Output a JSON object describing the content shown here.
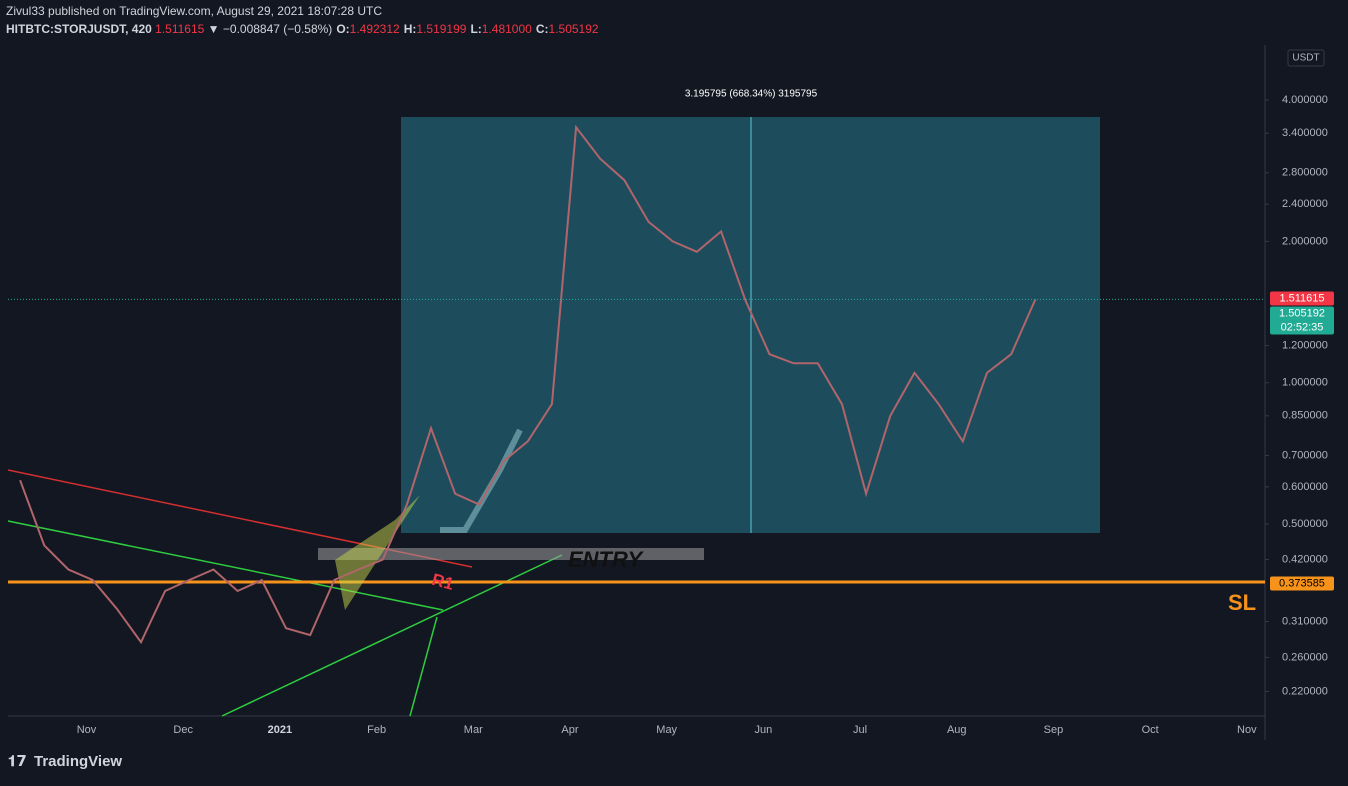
{
  "header": {
    "published": "Zivul33 published on TradingView.com, August 29, 2021 18:07:28 UTC",
    "symbol": "HITBTC:STORJUSDT, 420",
    "last": "1.511615",
    "change": "▼ −0.008847 (−0.58%)",
    "ohlc": [
      [
        "O:",
        "1.492312"
      ],
      [
        "H:",
        "1.519199"
      ],
      [
        "L:",
        "1.481000"
      ],
      [
        "C:",
        "1.505192"
      ]
    ]
  },
  "footer": {
    "brand": "TradingView"
  },
  "chart_data": {
    "type": "line",
    "log_scale": true,
    "color": "#b0656b",
    "currency": "USDT",
    "categories": [
      null,
      null,
      null,
      "Nov",
      null,
      null,
      null,
      "Dec",
      null,
      null,
      null,
      "2021",
      null,
      null,
      null,
      "Feb",
      null,
      null,
      null,
      "Mar",
      null,
      null,
      null,
      "Apr",
      null,
      null,
      null,
      "May",
      null,
      null,
      null,
      "Jun",
      null,
      null,
      null,
      "Jul",
      null,
      null,
      null,
      "Aug",
      null,
      null,
      null,
      "Sep",
      null,
      null,
      null,
      "Oct",
      null,
      null,
      null,
      "Nov"
    ],
    "values": [
      0.62,
      0.45,
      0.4,
      0.38,
      0.33,
      0.28,
      0.36,
      0.38,
      0.4,
      0.36,
      0.38,
      0.3,
      0.29,
      0.38,
      0.4,
      0.42,
      0.55,
      0.8,
      0.58,
      0.55,
      0.68,
      0.75,
      0.9,
      3.5,
      3.0,
      2.7,
      2.2,
      2.0,
      1.9,
      2.1,
      1.5,
      1.15,
      1.1,
      1.1,
      0.9,
      0.58,
      0.85,
      1.05,
      0.9,
      0.75,
      1.05,
      1.15,
      1.505192,
      null,
      null,
      null,
      null,
      null,
      null,
      null,
      null,
      null
    ],
    "ylim": [
      0.195,
      5.24
    ],
    "yticks": [
      {
        "value": 4.0,
        "label": "4.000000"
      },
      {
        "value": 3.4,
        "label": "3.400000"
      },
      {
        "value": 2.8,
        "label": "2.800000"
      },
      {
        "value": 2.4,
        "label": "2.400000"
      },
      {
        "value": 2.0,
        "label": "2.000000"
      },
      {
        "value": 1.2,
        "label": "1.200000"
      },
      {
        "value": 1.0,
        "label": "1.000000"
      },
      {
        "value": 0.85,
        "label": "0.850000"
      },
      {
        "value": 0.7,
        "label": "0.700000"
      },
      {
        "value": 0.6,
        "label": "0.600000"
      },
      {
        "value": 0.5,
        "label": "0.500000"
      },
      {
        "value": 0.42,
        "label": "0.420000"
      },
      {
        "value": 0.31,
        "label": "0.310000"
      },
      {
        "value": 0.26,
        "label": "0.260000"
      },
      {
        "value": 0.22,
        "label": "0.220000"
      }
    ],
    "price_labels": [
      {
        "value": 1.511615,
        "color": "#f23645"
      },
      {
        "value": 1.505192,
        "color": "#22ab94",
        "countdown": "02:52:35"
      },
      {
        "value": 0.373585,
        "color": "#f7931a"
      }
    ],
    "annotations": {
      "measure": "3.195795 (668.34%) 3195795",
      "entry": "ENTRY",
      "r1": "R1",
      "sl": "SL"
    }
  }
}
